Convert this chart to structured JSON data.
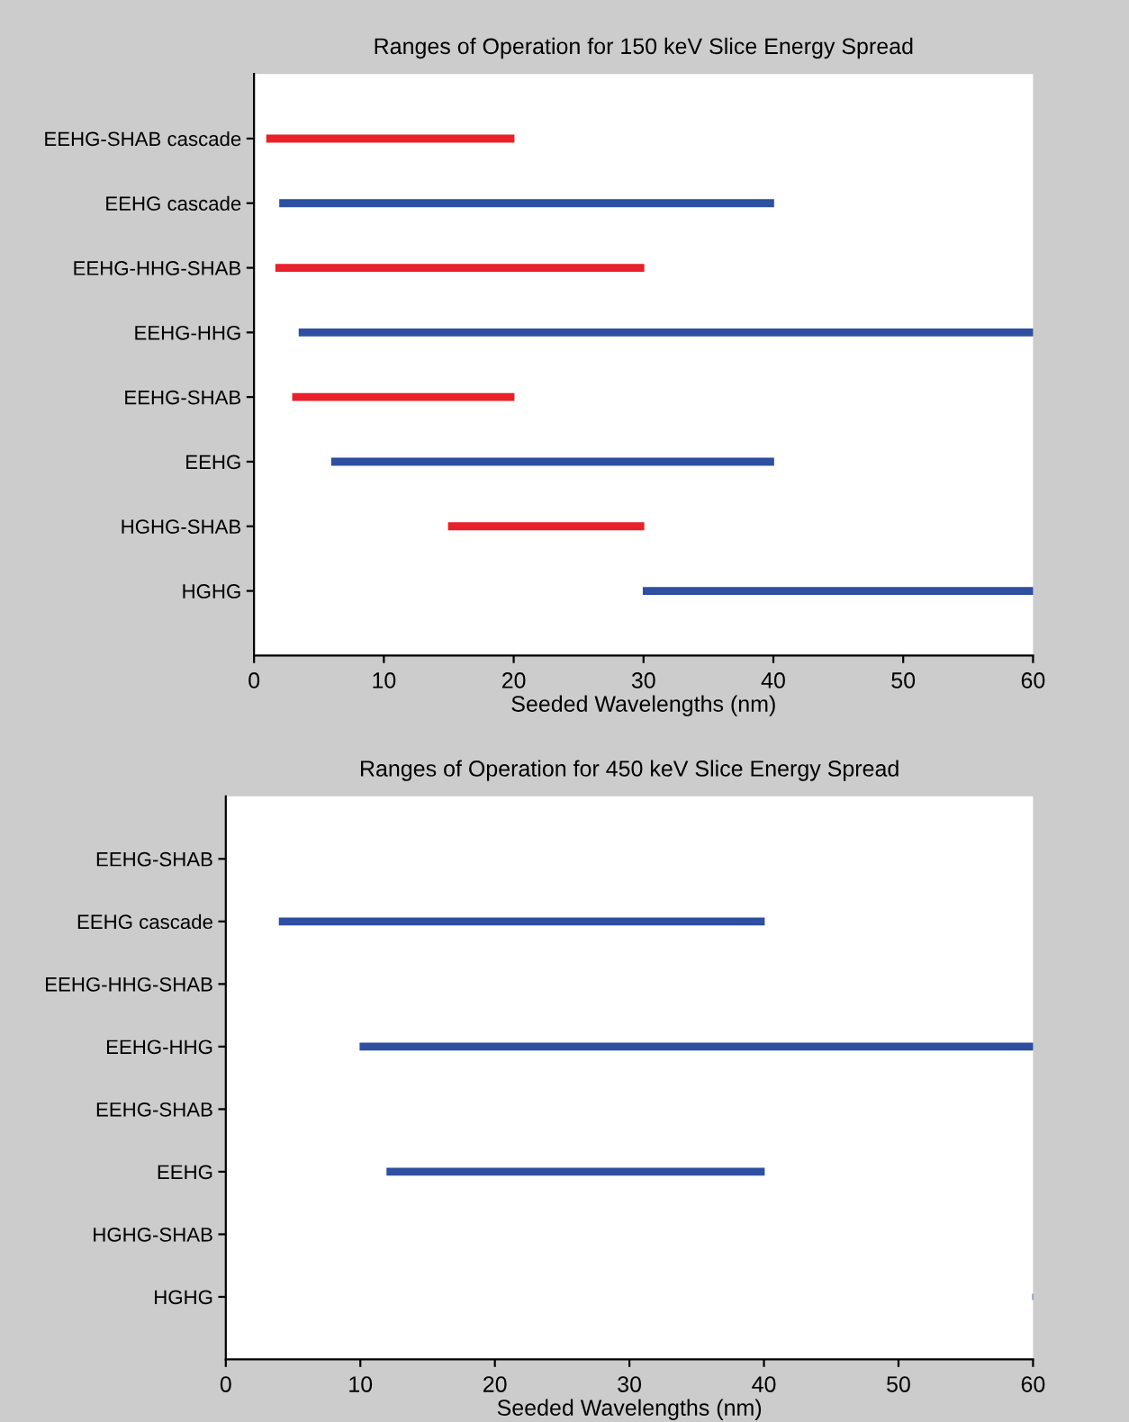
{
  "chart_data": [
    {
      "type": "bar",
      "orientation": "horizontal",
      "title": "Ranges of Operation for 150 keV Slice Energy Spread",
      "xlabel": "Seeded Wavelengths (nm)",
      "categories": [
        "EEHG-SHAB cascade",
        "EEHG cascade",
        "EEHG-HHG-SHAB",
        "EEHG-HHG",
        "EEHG-SHAB",
        "EEHG",
        "HGHG-SHAB",
        "HGHG"
      ],
      "base": [
        1,
        2,
        1.7,
        3.5,
        3,
        6,
        15,
        30
      ],
      "values": [
        19,
        38,
        28.3,
        56.5,
        17,
        34,
        15,
        30
      ],
      "colors": [
        "#e8212b",
        "#2f4fa0",
        "#e8212b",
        "#2f4fa0",
        "#e8212b",
        "#2f4fa0",
        "#e8212b",
        "#2f4fa0"
      ],
      "xlim": [
        0,
        60
      ],
      "xticks": [
        0,
        10,
        20,
        30,
        40,
        50,
        60
      ],
      "grid": false,
      "legend": false
    },
    {
      "type": "bar",
      "orientation": "horizontal",
      "title": "Ranges of Operation for 450 keV Slice Energy Spread",
      "xlabel": "Seeded Wavelengths (nm)",
      "categories": [
        "EEHG-SHAB",
        "EEHG cascade",
        "EEHG-HHG-SHAB",
        "EEHG-HHG",
        "EEHG-SHAB",
        "EEHG",
        "HGHG-SHAB",
        "HGHG"
      ],
      "base": [
        null,
        4,
        null,
        10,
        null,
        12,
        null,
        60
      ],
      "values": [
        null,
        36,
        null,
        50,
        null,
        28,
        null,
        0
      ],
      "colors": [
        "#2f4fa0",
        "#2f4fa0",
        "#2f4fa0",
        "#2f4fa0",
        "#2f4fa0",
        "#2f4fa0",
        "#2f4fa0",
        "#2f4fa0"
      ],
      "xlim": [
        0,
        60
      ],
      "xticks": [
        0,
        10,
        20,
        30,
        40,
        50,
        60
      ],
      "grid": false,
      "legend": false
    }
  ]
}
